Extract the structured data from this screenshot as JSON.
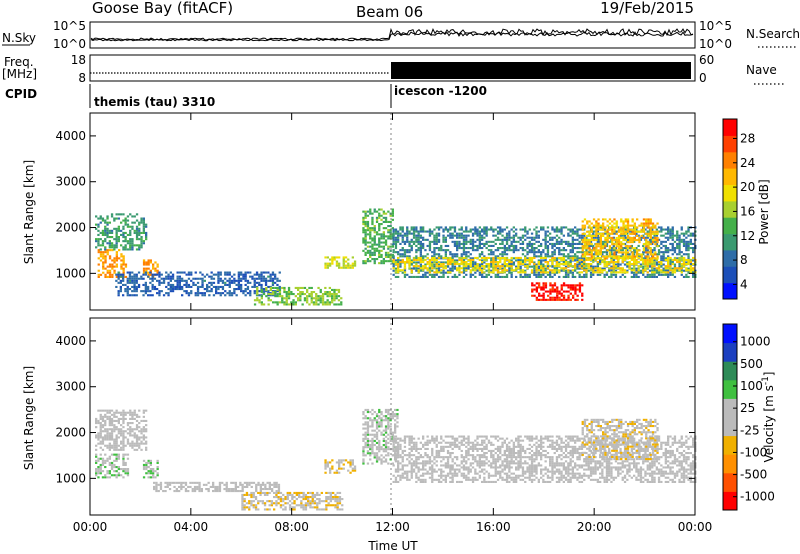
{
  "header": {
    "station": "Goose Bay (fitACF)",
    "beam": "Beam 06",
    "date": "19/Feb/2015"
  },
  "noise_panel": {
    "left_label": "N.Sky",
    "right_label": "N.Search",
    "left_ticks": [
      "10^5",
      "10^0"
    ],
    "right_ticks": [
      "10^5",
      "10^0"
    ]
  },
  "freq_panel": {
    "left_label_top": "Freq.",
    "left_label_unit": "[MHz]",
    "right_label": "Nave",
    "left_ticks": [
      "18",
      "8"
    ],
    "right_ticks": [
      "60",
      "0"
    ]
  },
  "cpid_panel": {
    "label": "CPID",
    "program_1": "themis (tau) 3310",
    "program_2": "icescon -1200"
  },
  "chart_data": [
    {
      "type": "heatmap",
      "title": "",
      "xlabel": "Time UT",
      "ylabel": "Slant Range [km]",
      "xlim": [
        0,
        24
      ],
      "ylim": [
        200,
        4500
      ],
      "x_ticks": [
        "00:00",
        "04:00",
        "08:00",
        "12:00",
        "16:00",
        "20:00",
        "00:00"
      ],
      "y_ticks": [
        "1000",
        "2000",
        "3000",
        "4000"
      ],
      "colorbar": {
        "label": "Power [dB]",
        "ticks": [
          "28",
          "24",
          "20",
          "16",
          "12",
          "8",
          "4"
        ],
        "range": [
          0,
          30
        ],
        "colors": [
          "#0010ff",
          "#1c4fb8",
          "#2e6da8",
          "#3a9a70",
          "#44b04a",
          "#a8d030",
          "#f0e000",
          "#ffb800",
          "#ff8000",
          "#ff4000",
          "#ff0000"
        ]
      },
      "regions": [
        {
          "t0": 0.3,
          "t1": 1.4,
          "r0": 900,
          "r1": 1500,
          "value": 22
        },
        {
          "t0": 0.2,
          "t1": 2.2,
          "r0": 1500,
          "r1": 2300,
          "value": 10
        },
        {
          "t0": 2.1,
          "t1": 2.7,
          "r0": 900,
          "r1": 1300,
          "value": 22
        },
        {
          "t0": 1.0,
          "t1": 7.5,
          "r0": 500,
          "r1": 1000,
          "value": 6
        },
        {
          "t0": 6.5,
          "t1": 10.0,
          "r0": 300,
          "r1": 700,
          "value": 14
        },
        {
          "t0": 9.3,
          "t1": 10.5,
          "r0": 1100,
          "r1": 1350,
          "value": 16
        },
        {
          "t0": 10.8,
          "t1": 12.0,
          "r0": 1200,
          "r1": 2400,
          "value": 12
        },
        {
          "t0": 12.0,
          "t1": 24.0,
          "r0": 900,
          "r1": 2000,
          "value": 8
        },
        {
          "t0": 12.0,
          "t1": 24.0,
          "r0": 1000,
          "r1": 1350,
          "value": 18
        },
        {
          "t0": 17.5,
          "t1": 19.5,
          "r0": 400,
          "r1": 800,
          "value": 28
        },
        {
          "t0": 19.5,
          "t1": 22.5,
          "r0": 1300,
          "r1": 2200,
          "value": 20
        }
      ]
    },
    {
      "type": "heatmap",
      "title": "",
      "xlabel": "Time UT",
      "ylabel": "Slant Range [km]",
      "xlim": [
        0,
        24
      ],
      "ylim": [
        200,
        4500
      ],
      "x_ticks": [
        "00:00",
        "04:00",
        "08:00",
        "12:00",
        "16:00",
        "20:00",
        "00:00"
      ],
      "y_ticks": [
        "1000",
        "2000",
        "3000",
        "4000"
      ],
      "colorbar": {
        "label": "Velocity [m s^-1]",
        "ticks": [
          "1000",
          "500",
          "100",
          "25",
          "-25",
          "-100",
          "-500",
          "-1000"
        ],
        "range": [
          -1000,
          1000
        ],
        "colors": [
          "#ff0000",
          "#ff5000",
          "#ff9000",
          "#f0b000",
          "#bbbbbb",
          "#bbbbbb",
          "#40c040",
          "#2e8b57",
          "#1c40c0",
          "#0010ff"
        ]
      },
      "regions": [
        {
          "t0": 0.2,
          "t1": 1.5,
          "r0": 1000,
          "r1": 1500,
          "value": 150
        },
        {
          "t0": 0.2,
          "t1": 2.2,
          "r0": 1600,
          "r1": 2500,
          "value": 0
        },
        {
          "t0": 2.1,
          "t1": 2.7,
          "r0": 1000,
          "r1": 1400,
          "value": 150
        },
        {
          "t0": 2.5,
          "t1": 7.5,
          "r0": 700,
          "r1": 900,
          "value": 0
        },
        {
          "t0": 6.0,
          "t1": 10.0,
          "r0": 300,
          "r1": 700,
          "value": -150
        },
        {
          "t0": 9.3,
          "t1": 10.5,
          "r0": 1100,
          "r1": 1400,
          "value": -150
        },
        {
          "t0": 10.8,
          "t1": 12.2,
          "r0": 1300,
          "r1": 2500,
          "value": 100
        },
        {
          "t0": 12.0,
          "t1": 24.0,
          "r0": 900,
          "r1": 1900,
          "value": 0
        },
        {
          "t0": 19.5,
          "t1": 22.5,
          "r0": 1400,
          "r1": 2300,
          "value": -120
        }
      ]
    }
  ]
}
